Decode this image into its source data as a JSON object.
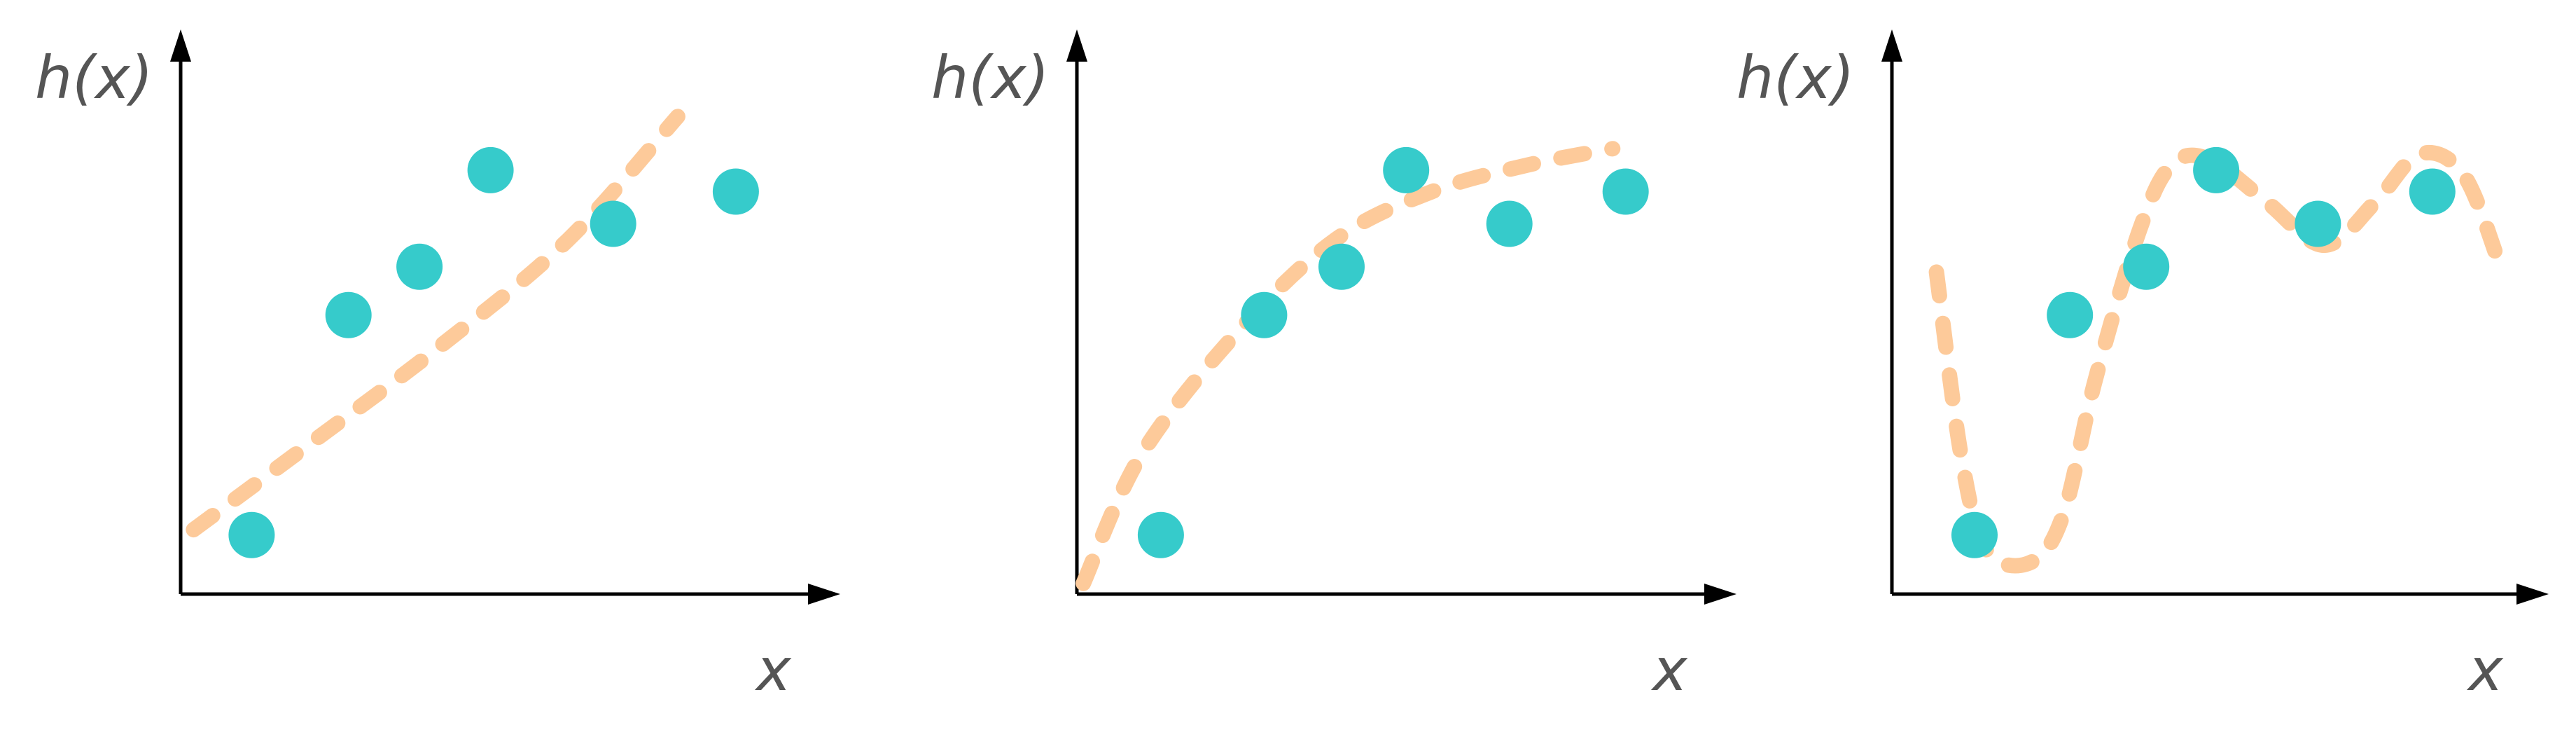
{
  "chart_data": [
    {
      "type": "scatter",
      "xlabel": "x",
      "ylabel": "h(x)",
      "xlim": [
        0,
        10
      ],
      "ylim": [
        0,
        10
      ],
      "points": [
        {
          "x": 1.1,
          "y": 1.1
        },
        {
          "x": 2.6,
          "y": 5.2
        },
        {
          "x": 3.7,
          "y": 6.1
        },
        {
          "x": 4.8,
          "y": 7.9
        },
        {
          "x": 6.7,
          "y": 6.9
        },
        {
          "x": 8.6,
          "y": 7.5
        }
      ],
      "curve": [
        [
          0.2,
          1.2
        ],
        [
          2.0,
          2.8
        ],
        [
          4.0,
          4.6
        ],
        [
          6.0,
          6.6
        ],
        [
          7.7,
          8.9
        ]
      ]
    },
    {
      "type": "scatter",
      "xlabel": "x",
      "ylabel": "h(x)",
      "xlim": [
        0,
        10
      ],
      "ylim": [
        0,
        10
      ],
      "points": [
        {
          "x": 1.3,
          "y": 1.1
        },
        {
          "x": 2.9,
          "y": 5.2
        },
        {
          "x": 4.1,
          "y": 6.1
        },
        {
          "x": 5.1,
          "y": 7.9
        },
        {
          "x": 6.7,
          "y": 6.9
        },
        {
          "x": 8.5,
          "y": 7.5
        }
      ],
      "curve": [
        [
          0.1,
          0.2
        ],
        [
          1.0,
          2.6
        ],
        [
          2.5,
          4.9
        ],
        [
          4.0,
          6.6
        ],
        [
          5.5,
          7.5
        ],
        [
          7.0,
          8.0
        ],
        [
          8.3,
          8.3
        ]
      ]
    },
    {
      "type": "scatter",
      "xlabel": "x",
      "ylabel": "h(x)",
      "xlim": [
        0,
        10
      ],
      "ylim": [
        0,
        10
      ],
      "points": [
        {
          "x": 1.3,
          "y": 1.1
        },
        {
          "x": 2.8,
          "y": 5.2
        },
        {
          "x": 4.0,
          "y": 6.1
        },
        {
          "x": 5.1,
          "y": 7.9
        },
        {
          "x": 6.7,
          "y": 6.9
        },
        {
          "x": 8.5,
          "y": 7.5
        }
      ],
      "curve": [
        [
          0.7,
          6.0
        ],
        [
          1.1,
          2.5
        ],
        [
          1.5,
          0.8
        ],
        [
          2.2,
          0.6
        ],
        [
          2.7,
          1.5
        ],
        [
          3.2,
          4.0
        ],
        [
          3.9,
          6.8
        ],
        [
          4.4,
          8.0
        ],
        [
          5.0,
          8.1
        ],
        [
          5.9,
          7.3
        ],
        [
          6.8,
          6.5
        ],
        [
          7.6,
          7.3
        ],
        [
          8.3,
          8.2
        ],
        [
          9.0,
          7.8
        ],
        [
          9.6,
          6.0
        ]
      ]
    }
  ],
  "colors": {
    "point": "#36cbcb",
    "curve": "#fdca9a",
    "axis": "#000000",
    "label": "#555555"
  }
}
